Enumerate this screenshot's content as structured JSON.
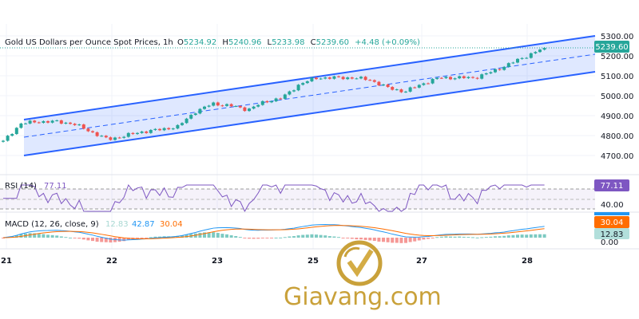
{
  "legend": {
    "symbol": "Gold US Dollars per Ounce Spot Prices, 1h",
    "o_label": "O",
    "o": "5234.92",
    "h_label": "H",
    "h": "5240.96",
    "l_label": "L",
    "l": "5233.98",
    "c_label": "C",
    "c": "5239.60",
    "change": "+4.48 (+0.09%)"
  },
  "rsi": {
    "label": "RSI (14)",
    "value": "77.11",
    "axis_label": "40.00"
  },
  "macd": {
    "label": "MACD (12, 26, close, 9)",
    "hist": "12.83",
    "macd": "42.87",
    "signal": "30.04",
    "zero_label": "0.00"
  },
  "colors": {
    "up": "#26a69a",
    "down": "#ef5350",
    "channel": "#2962ff",
    "rsi": "#7e57c2",
    "macd": "#2196f3",
    "signal": "#ff6d00",
    "logo": "#c9a13a"
  },
  "chart_data": {
    "type": "candlestick",
    "y_ticks": [
      "5300.00",
      "5200.00",
      "5100.00",
      "5000.00",
      "4900.00",
      "4800.00",
      "4700.00"
    ],
    "last_price": "5239.60",
    "x_ticks": [
      "21",
      "22",
      "23",
      "25",
      "27",
      "28"
    ],
    "approx_close_path": [
      4770,
      4860,
      4870,
      4870,
      4860,
      4820,
      4780,
      4800,
      4820,
      4830,
      4845,
      4920,
      4960,
      4950,
      4930,
      4970,
      4990,
      5060,
      5090,
      5090,
      5090,
      5080,
      5040,
      5020,
      5060,
      5090,
      5090,
      5090,
      5120,
      5160,
      5200,
      5240
    ],
    "channel": {
      "upper": [
        4880,
        5300
      ],
      "middle": [
        4792,
        5208
      ],
      "lower": [
        4700,
        5120
      ]
    },
    "rsi_levels": [
      70,
      50,
      30
    ]
  },
  "logo": {
    "text": "Giavang.com"
  }
}
